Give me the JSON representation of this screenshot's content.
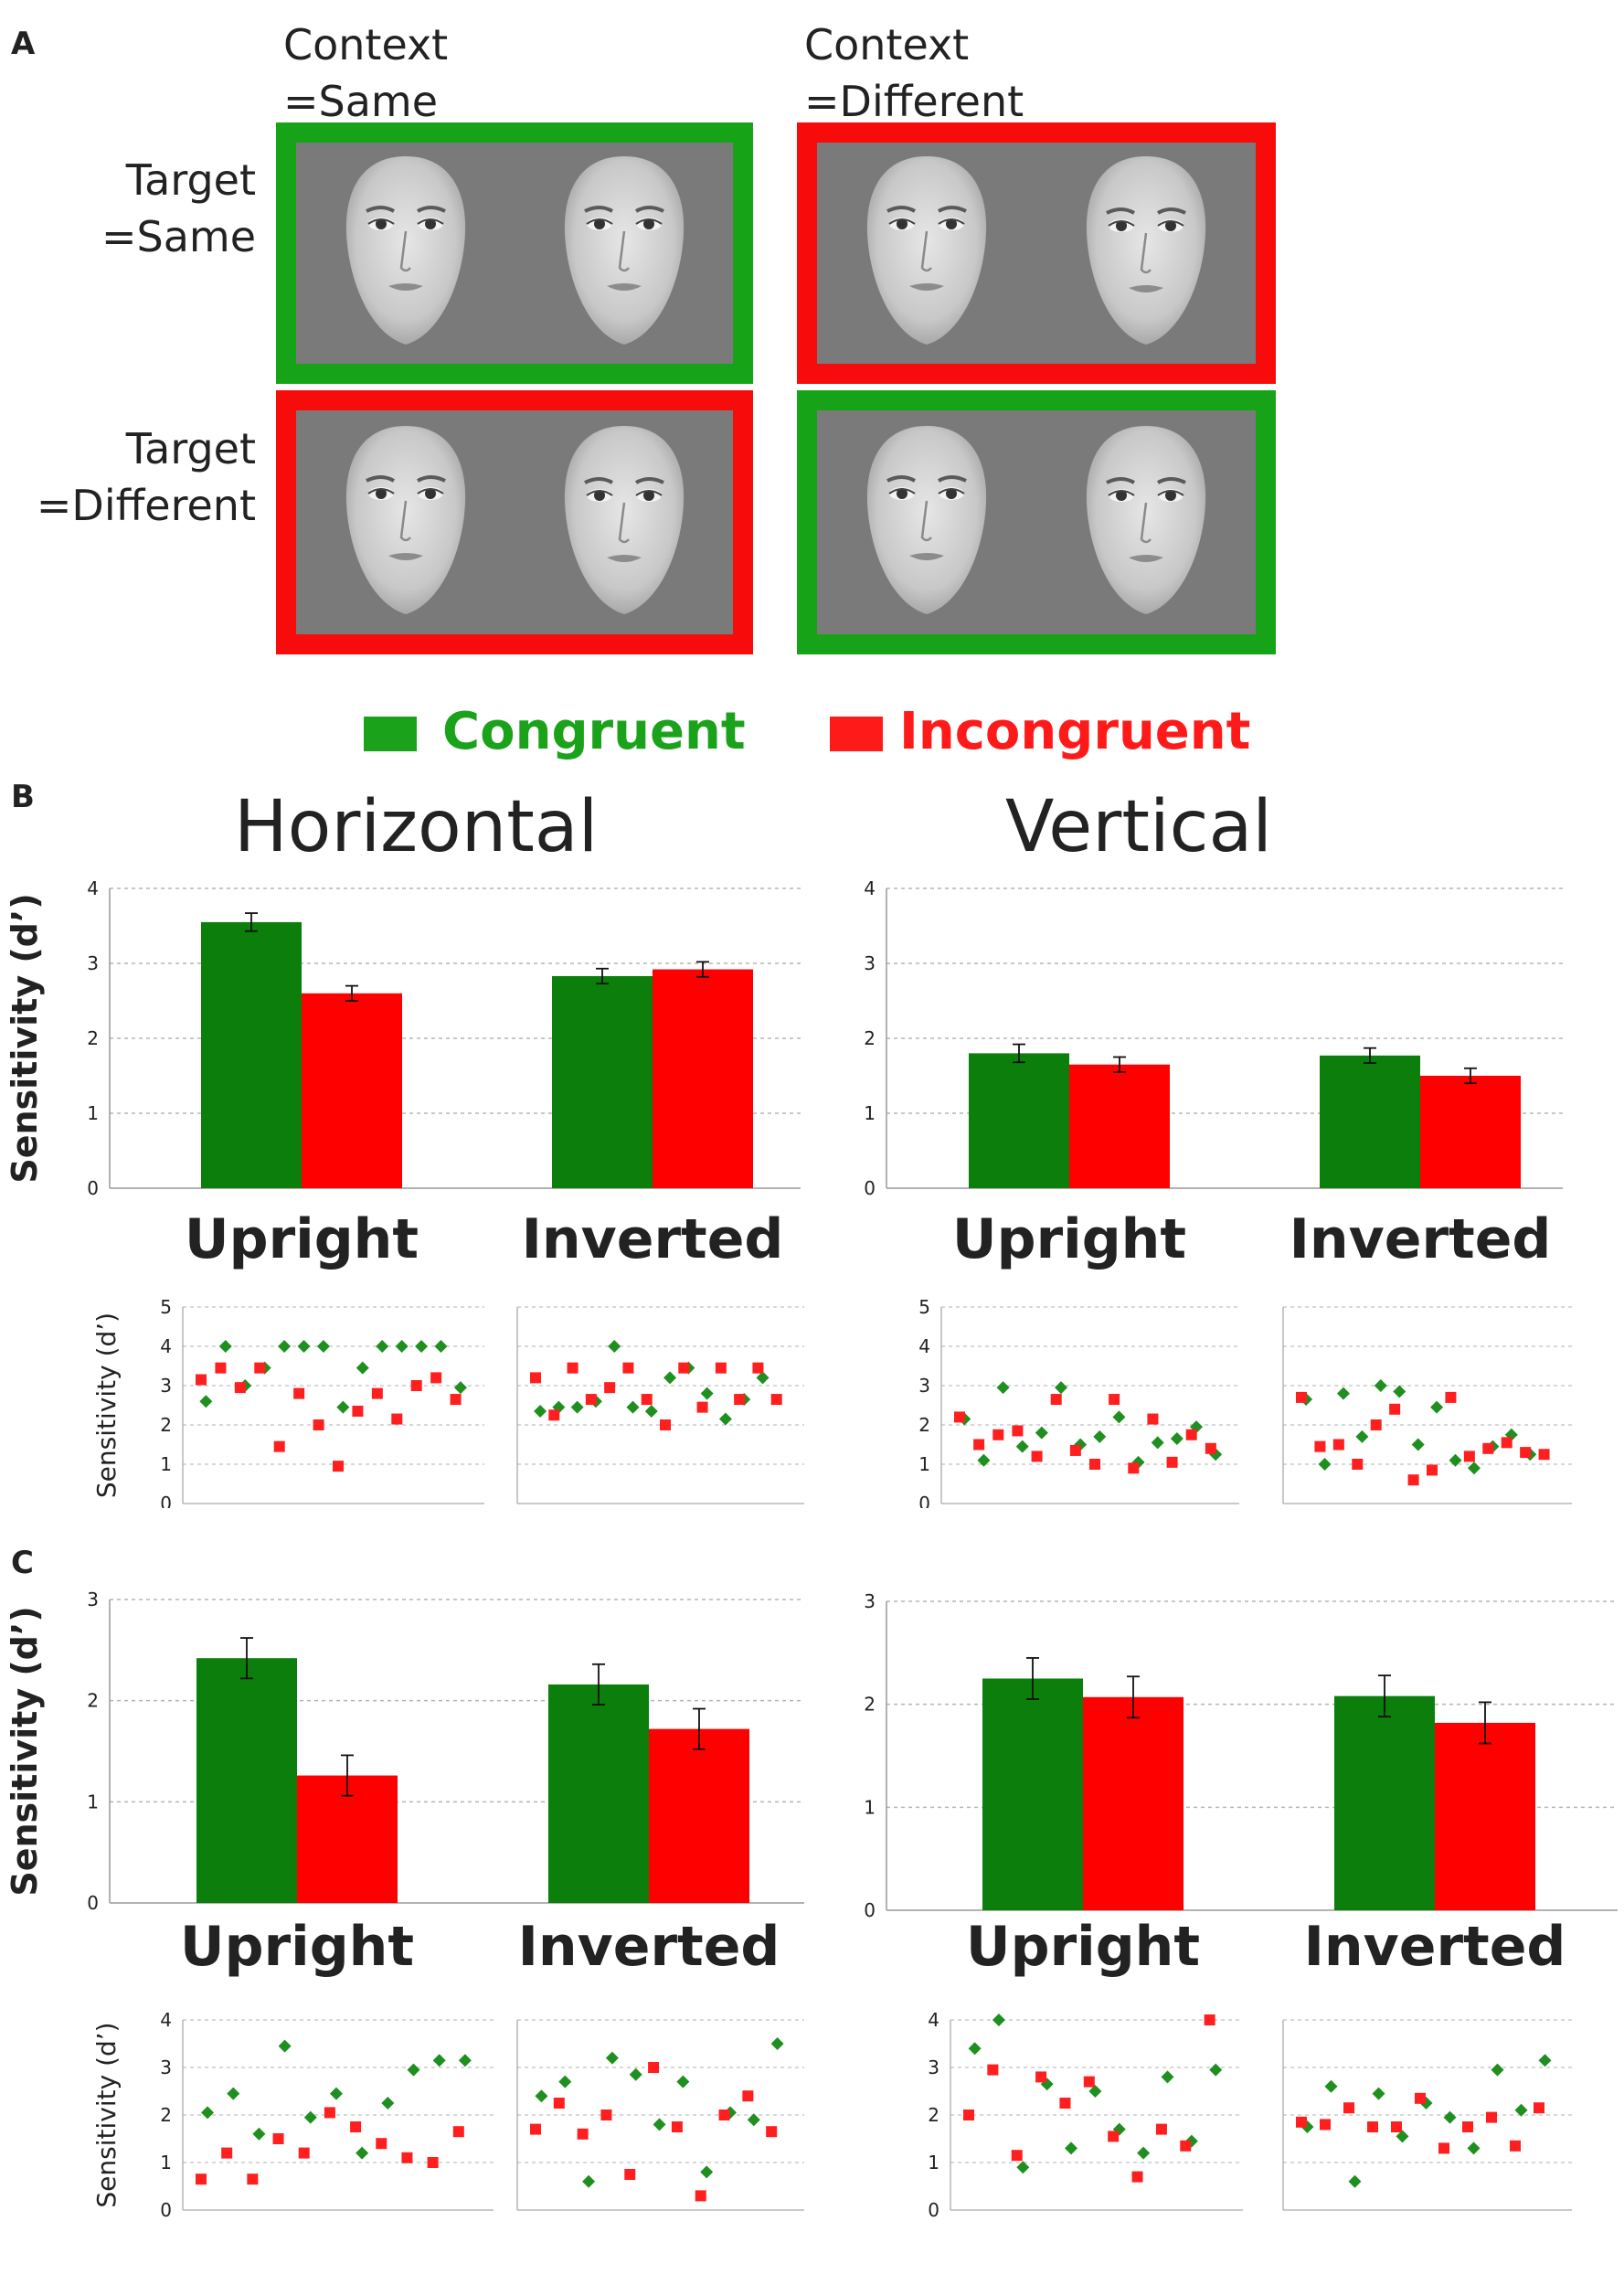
{
  "panelA": {
    "letter": "A",
    "context_same": "Context\n=Same",
    "context_different": "Context\n=Different",
    "target_same": "Target\n=Same",
    "target_different": "Target\n=Different"
  },
  "legend": {
    "congruent": "Congruent",
    "incongruent": "Incongruent",
    "congruent_color": "#1aa31a",
    "incongruent_color": "#ff1a1a"
  },
  "panelB": {
    "letter": "B",
    "title_left": "Horizontal",
    "title_right": "Vertical"
  },
  "panelC": {
    "letter": "C"
  },
  "axis": {
    "ylabel": "Sensitivity (d’)",
    "upright": "Upright",
    "inverted": "Inverted"
  },
  "colors": {
    "green": "#0b7e0b",
    "red": "#ff0000",
    "scatter_green": "#1f8f1f",
    "scatter_red": "#ff1f1f"
  },
  "chart_data": [
    {
      "id": "B-horizontal-bars",
      "type": "bar",
      "title": "Horizontal",
      "ylabel": "Sensitivity (d’)",
      "ylim": [
        0,
        4
      ],
      "yticks": [
        "0",
        "1",
        "2",
        "3",
        "4"
      ],
      "categories": [
        "Upright",
        "Inverted"
      ],
      "series": [
        {
          "name": "Congruent",
          "values": [
            3.55,
            2.83
          ],
          "errors": [
            0.12,
            0.1
          ]
        },
        {
          "name": "Incongruent",
          "values": [
            2.6,
            2.92
          ],
          "errors": [
            0.1,
            0.1
          ]
        }
      ]
    },
    {
      "id": "B-vertical-bars",
      "type": "bar",
      "title": "Vertical",
      "ylabel": "",
      "ylim": [
        0,
        4
      ],
      "yticks": [
        "0",
        "1",
        "2",
        "3",
        "4"
      ],
      "categories": [
        "Upright",
        "Inverted"
      ],
      "series": [
        {
          "name": "Congruent",
          "values": [
            1.8,
            1.77
          ],
          "errors": [
            0.12,
            0.1
          ]
        },
        {
          "name": "Incongruent",
          "values": [
            1.65,
            1.5
          ],
          "errors": [
            0.1,
            0.1
          ]
        }
      ]
    },
    {
      "id": "B-horizontal-upright-scatter",
      "type": "scatter",
      "ylabel": "Sensitivity (d’)",
      "ylim": [
        0,
        5
      ],
      "yticks": [
        "0",
        "1",
        "2",
        "3",
        "4",
        "5"
      ],
      "series": [
        {
          "name": "Congruent",
          "values": [
            2.6,
            4.0,
            3.0,
            3.45,
            4.0,
            4.0,
            4.0,
            2.45,
            3.45,
            4.0,
            4.0,
            4.0,
            4.0,
            2.95
          ]
        },
        {
          "name": "Incongruent",
          "values": [
            3.15,
            3.45,
            2.95,
            3.45,
            1.45,
            2.8,
            2.0,
            0.95,
            2.35,
            2.8,
            2.15,
            3.0,
            3.2,
            2.65
          ]
        }
      ]
    },
    {
      "id": "B-horizontal-inverted-scatter",
      "type": "scatter",
      "ylabel": "",
      "ylim": [
        0,
        5
      ],
      "yticks": [],
      "series": [
        {
          "name": "Congruent",
          "values": [
            2.35,
            2.45,
            2.45,
            2.6,
            4.0,
            2.45,
            2.35,
            3.2,
            3.45,
            2.8,
            2.15,
            2.65,
            3.2
          ]
        },
        {
          "name": "Incongruent",
          "values": [
            3.2,
            2.25,
            3.45,
            2.65,
            2.95,
            3.45,
            2.65,
            2.0,
            3.45,
            2.45,
            3.45,
            2.65,
            3.45,
            2.65
          ]
        }
      ]
    },
    {
      "id": "B-vertical-upright-scatter",
      "type": "scatter",
      "ylabel": "",
      "ylim": [
        0,
        5
      ],
      "yticks": [
        "0",
        "1",
        "2",
        "3",
        "4",
        "5"
      ],
      "series": [
        {
          "name": "Congruent",
          "values": [
            2.15,
            1.1,
            2.95,
            1.45,
            1.8,
            2.95,
            1.5,
            1.7,
            2.2,
            1.05,
            1.55,
            1.65,
            1.95,
            1.25
          ]
        },
        {
          "name": "Incongruent",
          "values": [
            2.2,
            1.5,
            1.75,
            1.85,
            1.2,
            2.65,
            1.35,
            1.0,
            2.65,
            0.9,
            2.15,
            1.05,
            1.75,
            1.4
          ]
        }
      ]
    },
    {
      "id": "B-vertical-inverted-scatter",
      "type": "scatter",
      "ylabel": "",
      "ylim": [
        0,
        5
      ],
      "yticks": [],
      "series": [
        {
          "name": "Congruent",
          "values": [
            2.65,
            1.0,
            2.8,
            1.7,
            3.0,
            2.85,
            1.5,
            2.45,
            1.1,
            0.9,
            1.45,
            1.75,
            1.25
          ]
        },
        {
          "name": "Incongruent",
          "values": [
            2.7,
            1.45,
            1.5,
            1.0,
            2.0,
            2.4,
            0.6,
            0.85,
            2.7,
            1.2,
            1.4,
            1.55,
            1.3,
            1.25
          ]
        }
      ]
    },
    {
      "id": "C-horizontal-bars",
      "type": "bar",
      "ylabel": "Sensitivity (d’)",
      "ylim": [
        0,
        3
      ],
      "yticks": [
        "0",
        "1",
        "2",
        "3"
      ],
      "categories": [
        "Upright",
        "Inverted"
      ],
      "series": [
        {
          "name": "Congruent",
          "values": [
            2.42,
            2.16
          ],
          "errors": [
            0.2,
            0.2
          ]
        },
        {
          "name": "Incongruent",
          "values": [
            1.26,
            1.72
          ],
          "errors": [
            0.2,
            0.2
          ]
        }
      ]
    },
    {
      "id": "C-vertical-bars",
      "type": "bar",
      "ylabel": "",
      "ylim": [
        0,
        3
      ],
      "yticks": [
        "0",
        "1",
        "2",
        "3"
      ],
      "categories": [
        "Upright",
        "Inverted"
      ],
      "series": [
        {
          "name": "Congruent",
          "values": [
            2.25,
            2.08
          ],
          "errors": [
            0.2,
            0.2
          ]
        },
        {
          "name": "Incongruent",
          "values": [
            2.07,
            1.82
          ],
          "errors": [
            0.2,
            0.2
          ]
        }
      ]
    },
    {
      "id": "C-horizontal-upright-scatter",
      "type": "scatter",
      "ylabel": "Sensitivity (d’)",
      "ylim": [
        0,
        4
      ],
      "yticks": [
        "0",
        "1",
        "2",
        "3",
        "4"
      ],
      "series": [
        {
          "name": "Congruent",
          "values": [
            2.05,
            2.45,
            1.6,
            3.45,
            1.95,
            2.45,
            1.2,
            2.25,
            2.95,
            3.15,
            3.15
          ]
        },
        {
          "name": "Incongruent",
          "values": [
            0.65,
            1.2,
            0.65,
            1.5,
            1.2,
            2.05,
            1.75,
            1.4,
            1.1,
            1.0,
            1.65
          ]
        }
      ]
    },
    {
      "id": "C-horizontal-inverted-scatter",
      "type": "scatter",
      "ylabel": "",
      "ylim": [
        0,
        4
      ],
      "yticks": [],
      "series": [
        {
          "name": "Congruent",
          "values": [
            2.4,
            2.7,
            0.6,
            3.2,
            2.85,
            1.8,
            2.7,
            0.8,
            2.05,
            1.9,
            3.5
          ]
        },
        {
          "name": "Incongruent",
          "values": [
            1.7,
            2.25,
            1.6,
            2.0,
            0.75,
            3.0,
            1.75,
            0.3,
            2.0,
            2.4,
            1.65
          ]
        }
      ]
    },
    {
      "id": "C-vertical-upright-scatter",
      "type": "scatter",
      "ylabel": "",
      "ylim": [
        0,
        4
      ],
      "yticks": [
        "0",
        "1",
        "2",
        "3",
        "4"
      ],
      "series": [
        {
          "name": "Congruent",
          "values": [
            3.4,
            4.0,
            0.9,
            2.65,
            1.3,
            2.5,
            1.7,
            1.2,
            2.8,
            1.45,
            2.95
          ]
        },
        {
          "name": "Incongruent",
          "values": [
            2.0,
            2.95,
            1.15,
            2.8,
            2.25,
            2.7,
            1.55,
            0.7,
            1.7,
            1.35,
            4.0
          ]
        }
      ]
    },
    {
      "id": "C-vertical-inverted-scatter",
      "type": "scatter",
      "ylabel": "",
      "ylim": [
        0,
        4
      ],
      "yticks": [],
      "series": [
        {
          "name": "Congruent",
          "values": [
            1.75,
            2.6,
            0.6,
            2.45,
            1.55,
            2.25,
            1.95,
            1.3,
            2.95,
            2.1,
            3.15
          ]
        },
        {
          "name": "Incongruent",
          "values": [
            1.85,
            1.8,
            2.15,
            1.75,
            1.75,
            2.35,
            1.3,
            1.75,
            1.95,
            1.35,
            2.15
          ]
        }
      ]
    }
  ]
}
